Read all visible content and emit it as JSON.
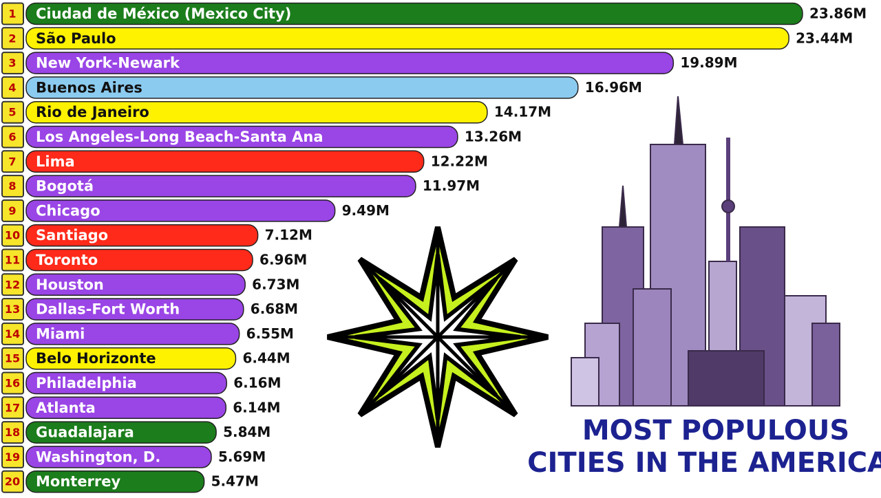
{
  "chart_data": {
    "type": "bar",
    "orientation": "horizontal",
    "title_lines": [
      "MOST POPULOUS",
      "CITIES IN THE AMERICAS"
    ],
    "ranks": [
      1,
      2,
      3,
      4,
      5,
      6,
      7,
      8,
      9,
      10,
      11,
      12,
      13,
      14,
      15,
      16,
      17,
      18,
      19,
      20
    ],
    "categories": [
      "Ciudad de México (Mexico City)",
      "São Paulo",
      "New York-Newark",
      "Buenos Aires",
      "Rio de Janeiro",
      "Los Angeles-Long Beach-Santa Ana",
      "Lima",
      "Bogotá",
      "Chicago",
      "Santiago",
      "Toronto",
      "Houston",
      "Dallas-Fort Worth",
      "Miami",
      "Belo Horizonte",
      "Philadelphia",
      "Atlanta",
      "Guadalajara",
      "Washington, D.",
      "Monterrey"
    ],
    "values": [
      23.86,
      23.44,
      19.89,
      16.96,
      14.17,
      13.26,
      12.22,
      11.97,
      9.49,
      7.12,
      6.96,
      6.73,
      6.68,
      6.55,
      6.44,
      6.16,
      6.14,
      5.84,
      5.69,
      5.47
    ],
    "value_labels": [
      "23.86M",
      "23.44M",
      "19.89M",
      "16.96M",
      "14.17M",
      "13.26M",
      "12.22M",
      "11.97M",
      "9.49M",
      "7.12M",
      "6.96M",
      "6.73M",
      "6.68M",
      "6.55M",
      "6.44M",
      "6.16M",
      "6.14M",
      "5.84M",
      "5.69M",
      "5.47M"
    ],
    "colors": [
      "#1b7d1b",
      "#fff200",
      "#9a45e6",
      "#8ccbf0",
      "#fff200",
      "#9a45e6",
      "#ff2a1a",
      "#9a45e6",
      "#9a45e6",
      "#ff2a1a",
      "#ff2a1a",
      "#9a45e6",
      "#9a45e6",
      "#9a45e6",
      "#fff200",
      "#9a45e6",
      "#9a45e6",
      "#1b7d1b",
      "#9a45e6",
      "#1b7d1b"
    ]
  }
}
